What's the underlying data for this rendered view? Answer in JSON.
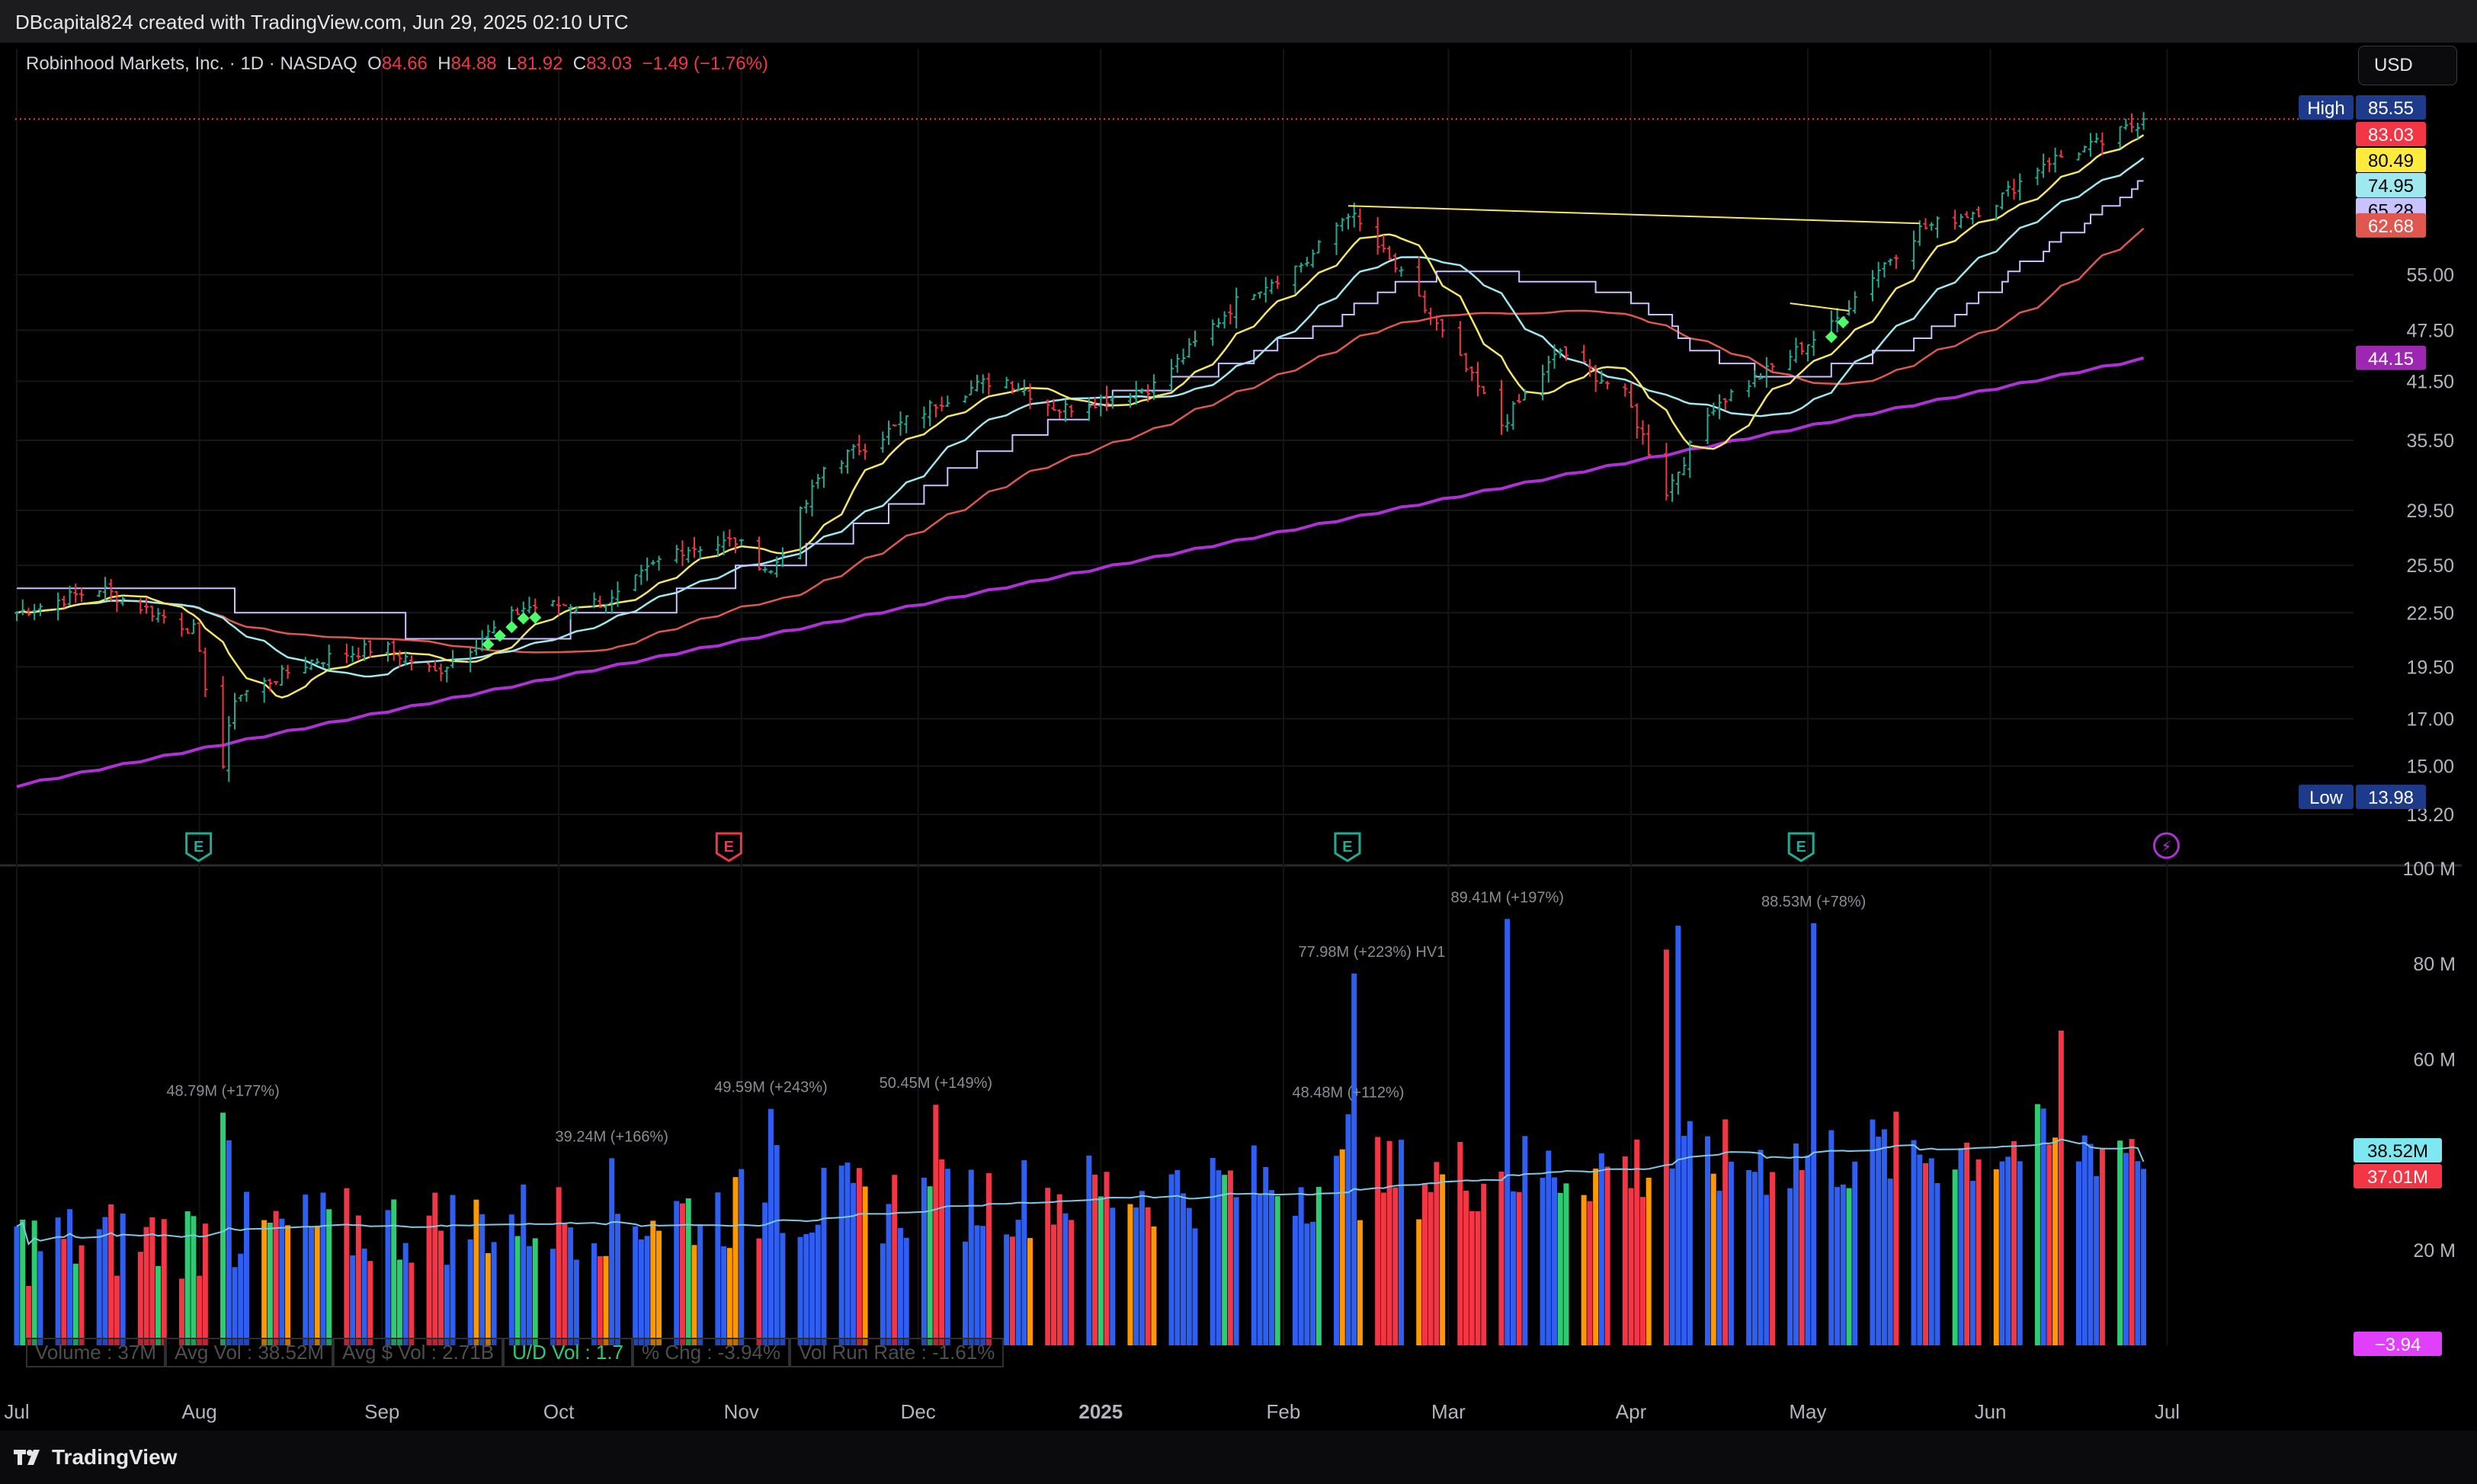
{
  "header": {
    "attribution": "DBcapital824 created with TradingView.com, Jun 29, 2025 02:10 UTC"
  },
  "legend": {
    "symbol": "Robinhood Markets, Inc. · 1D · NASDAQ",
    "o_label": "O",
    "o_value": "84.66",
    "h_label": "H",
    "h_value": "84.88",
    "l_label": "L",
    "l_value": "81.92",
    "c_label": "C",
    "c_value": "83.03",
    "change": "−1.49 (−1.76%)"
  },
  "currency": "USD",
  "footer": {
    "brand": "TradingView"
  },
  "volume_stats": {
    "volume": "Volume : 37M",
    "avg_vol": "Avg Vol : 38.52M",
    "avg_dollar_vol": "Avg $ Vol : 2.71B",
    "ud_vol": "U/D Vol : 1.7",
    "pct_chg": "% Chg : -3.94%",
    "run_rate": "Vol Run Rate : -1.61%"
  },
  "colors": {
    "up": "#22ab94",
    "down": "#f23645",
    "vol_blue": "#2f5ff0",
    "vol_red": "#f23645",
    "vol_green": "#2ecc71",
    "vol_orange": "#ff9800",
    "ma_yellow": "#f5e663",
    "ma_cyan": "#9ee8f0",
    "ma_red": "#e0574f",
    "ma_lavender": "#c9c2ff",
    "ma_purple": "#b030d8"
  },
  "chart_data": [
    {
      "type": "candlestick",
      "title": "Robinhood Markets, Inc. · 1D · NASDAQ",
      "scale": "log",
      "ylim": [
        12.4,
        100
      ],
      "y_ticks": [
        "55.00",
        "47.50",
        "41.50",
        "35.50",
        "29.50",
        "25.50",
        "22.50",
        "19.50",
        "17.00",
        "15.00",
        "13.20"
      ],
      "x_ticks": [
        "Jul",
        "Aug",
        "Sep",
        "Oct",
        "Nov",
        "Dec",
        "2025",
        "Feb",
        "Mar",
        "Apr",
        "May",
        "Jun",
        "Jul"
      ],
      "x_tick_dates": [
        "2024-07-01",
        "2024-08-01",
        "2024-09-01",
        "2024-10-01",
        "2024-11-01",
        "2024-12-01",
        "2025-01-01",
        "2025-02-01",
        "2025-03-01",
        "2025-04-01",
        "2025-05-01",
        "2025-06-01",
        "2025-07-01"
      ],
      "price_path": [
        {
          "date": "2024-07-01",
          "close": 22.5
        },
        {
          "date": "2024-07-15",
          "close": 24.0
        },
        {
          "date": "2024-07-31",
          "close": 21.5
        },
        {
          "date": "2024-08-05",
          "close": 15.0
        },
        {
          "date": "2024-08-07",
          "close": 18.0
        },
        {
          "date": "2024-08-20",
          "close": 19.8
        },
        {
          "date": "2024-09-01",
          "close": 20.6
        },
        {
          "date": "2024-09-10",
          "close": 19.2
        },
        {
          "date": "2024-09-25",
          "close": 22.8
        },
        {
          "date": "2024-10-10",
          "close": 23.2
        },
        {
          "date": "2024-10-20",
          "close": 26.5
        },
        {
          "date": "2024-10-31",
          "close": 27.2
        },
        {
          "date": "2024-11-06",
          "close": 25.0
        },
        {
          "date": "2024-11-15",
          "close": 33.0
        },
        {
          "date": "2024-11-25",
          "close": 36.0
        },
        {
          "date": "2024-12-05",
          "close": 39.5
        },
        {
          "date": "2024-12-15",
          "close": 42.0
        },
        {
          "date": "2024-12-25",
          "close": 38.5
        },
        {
          "date": "2025-01-10",
          "close": 41.0
        },
        {
          "date": "2025-01-25",
          "close": 52.0
        },
        {
          "date": "2025-02-05",
          "close": 57.0
        },
        {
          "date": "2025-02-12",
          "close": 65.0
        },
        {
          "date": "2025-02-20",
          "close": 56.0
        },
        {
          "date": "2025-03-01",
          "close": 46.0
        },
        {
          "date": "2025-03-10",
          "close": 37.0
        },
        {
          "date": "2025-03-20",
          "close": 45.0
        },
        {
          "date": "2025-03-31",
          "close": 40.0
        },
        {
          "date": "2025-04-07",
          "close": 31.0
        },
        {
          "date": "2025-04-15",
          "close": 39.0
        },
        {
          "date": "2025-04-25",
          "close": 43.0
        },
        {
          "date": "2025-05-05",
          "close": 48.0
        },
        {
          "date": "2025-05-12",
          "close": 55.0
        },
        {
          "date": "2025-05-20",
          "close": 62.0
        },
        {
          "date": "2025-06-01",
          "close": 66.0
        },
        {
          "date": "2025-06-10",
          "close": 74.0
        },
        {
          "date": "2025-06-20",
          "close": 78.0
        },
        {
          "date": "2025-06-27",
          "close": 83.03
        }
      ],
      "last_close": 83.03,
      "resistance_line": {
        "from": {
          "date": "2025-02-12",
          "price": 66.0
        },
        "to": {
          "date": "2025-05-20",
          "price": 63.0
        }
      },
      "short_line": {
        "from": {
          "date": "2025-04-28",
          "price": 51.0
        },
        "to": {
          "date": "2025-05-08",
          "price": 50.0
        }
      },
      "series": [
        {
          "name": "",
          "color": "#f5e663",
          "last": 80.49
        },
        {
          "name": "",
          "color": "#9ee8f0",
          "last": 74.95
        },
        {
          "name": "",
          "color": "#c9c2ff",
          "last": 65.28
        },
        {
          "name": "",
          "color": "#e0574f",
          "last": 62.68
        },
        {
          "name": "",
          "color": "#b030d8",
          "last": 44.15
        }
      ],
      "price_labels": [
        {
          "text": "High",
          "value": "85.55"
        },
        {
          "text": "",
          "value": "83.03"
        },
        {
          "text": "",
          "value": "80.49"
        },
        {
          "text": "",
          "value": "74.95"
        },
        {
          "text": "",
          "value": "65.28"
        },
        {
          "text": "",
          "value": "62.68"
        },
        {
          "text": "",
          "value": "44.15"
        },
        {
          "text": "Low",
          "value": "13.98"
        }
      ],
      "earnings_markers": [
        "E",
        "E",
        "E",
        "E",
        "⚡"
      ]
    },
    {
      "type": "bar",
      "title": "Volume",
      "ylim": [
        0,
        100
      ],
      "y_ticks": [
        "100 M",
        "80 M",
        "60 M",
        "20 M"
      ],
      "annotations": [
        "48.79M (+177%)",
        "39.24M (+166%)",
        "49.59M (+243%)",
        "50.45M (+149%)",
        "48.48M (+112%)",
        "77.98M (+223%) HV1",
        "89.41M (+197%)",
        "88.53M (+78%)"
      ],
      "right_labels": [
        "38.52M",
        "37.01M",
        "−3.94"
      ],
      "avg_volume_last": 38.52,
      "last_volume": 37.01
    }
  ]
}
